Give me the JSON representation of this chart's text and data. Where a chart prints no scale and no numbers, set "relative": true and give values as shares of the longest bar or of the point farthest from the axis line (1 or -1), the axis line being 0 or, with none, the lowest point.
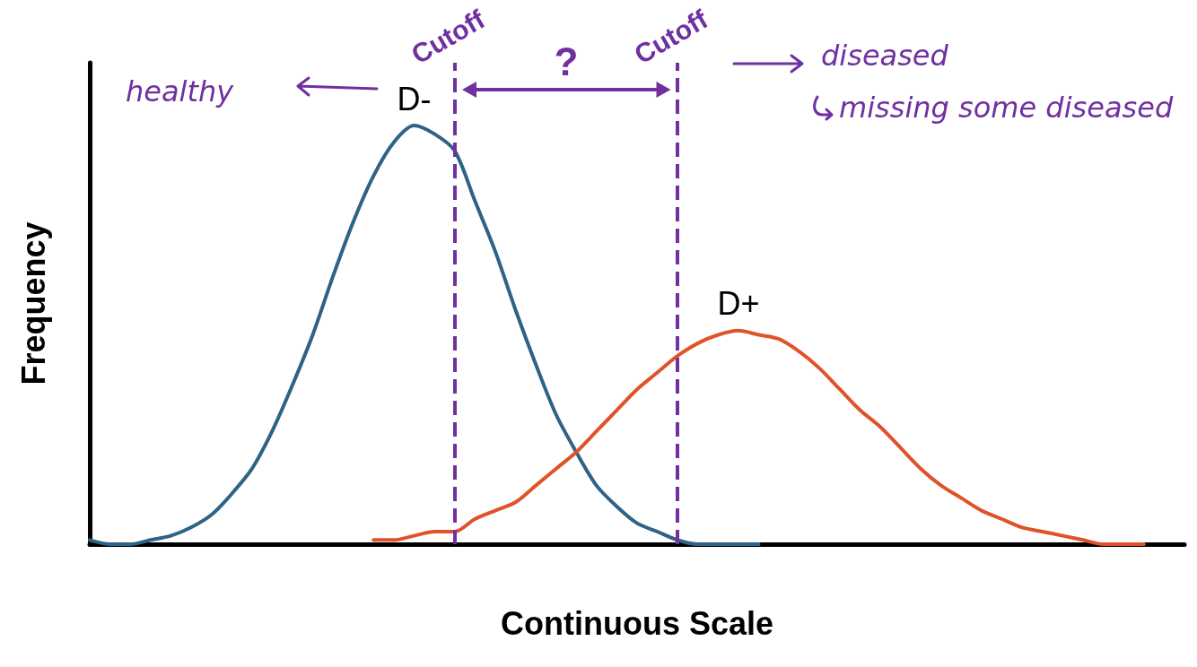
{
  "chart_data": {
    "type": "line",
    "relative": true,
    "xlabel": "Continuous Scale",
    "ylabel": "Frequency",
    "categories": [
      null,
      null,
      null,
      null,
      null,
      null,
      null,
      null,
      null,
      null,
      null,
      null,
      null,
      null,
      null,
      null,
      null,
      null,
      null,
      null,
      null,
      null,
      null,
      null,
      null,
      null,
      null,
      null,
      null,
      null,
      null,
      null,
      null,
      null,
      null,
      null,
      null,
      null,
      null,
      null,
      null,
      null,
      null,
      null,
      null,
      null,
      null,
      null,
      null,
      null,
      null,
      null,
      null,
      null,
      null
    ],
    "series": [
      {
        "name": "D-",
        "color": "#2e6286",
        "values": [
          0.01,
          0,
          0,
          0.01,
          0.02,
          0.04,
          0.07,
          0.12,
          0.18,
          0.27,
          0.38,
          0.5,
          0.64,
          0.77,
          0.88,
          0.96,
          1,
          0.98,
          0.94,
          0.82,
          0.7,
          0.56,
          0.43,
          0.31,
          0.22,
          0.14,
          0.09,
          0.05,
          0.03,
          0.01,
          0,
          0,
          0,
          0,
          null,
          null,
          null,
          null,
          null,
          null,
          null,
          null,
          null,
          null,
          null,
          null,
          null,
          null,
          null,
          null,
          null,
          null,
          null,
          null,
          null
        ]
      },
      {
        "name": "D+",
        "color": "#e0522a",
        "values": [
          null,
          null,
          null,
          null,
          null,
          null,
          null,
          null,
          null,
          null,
          null,
          null,
          null,
          null,
          0.01,
          0.01,
          0.02,
          0.03,
          0.03,
          0.06,
          0.08,
          0.1,
          0.14,
          0.18,
          0.22,
          0.27,
          0.32,
          0.37,
          0.41,
          0.45,
          0.48,
          0.5,
          0.51,
          0.5,
          0.49,
          0.46,
          0.42,
          0.37,
          0.32,
          0.28,
          0.23,
          0.18,
          0.14,
          0.11,
          0.08,
          0.06,
          0.04,
          0.03,
          0.02,
          0.01,
          0,
          0,
          0,
          null,
          null
        ]
      }
    ],
    "annotations": [
      "healthy",
      "Cutoff",
      "?",
      "Cutoff",
      "diseased",
      "missing some diseased"
    ],
    "grid": false,
    "legend": false,
    "marker": "none",
    "line_style": "solid"
  }
}
